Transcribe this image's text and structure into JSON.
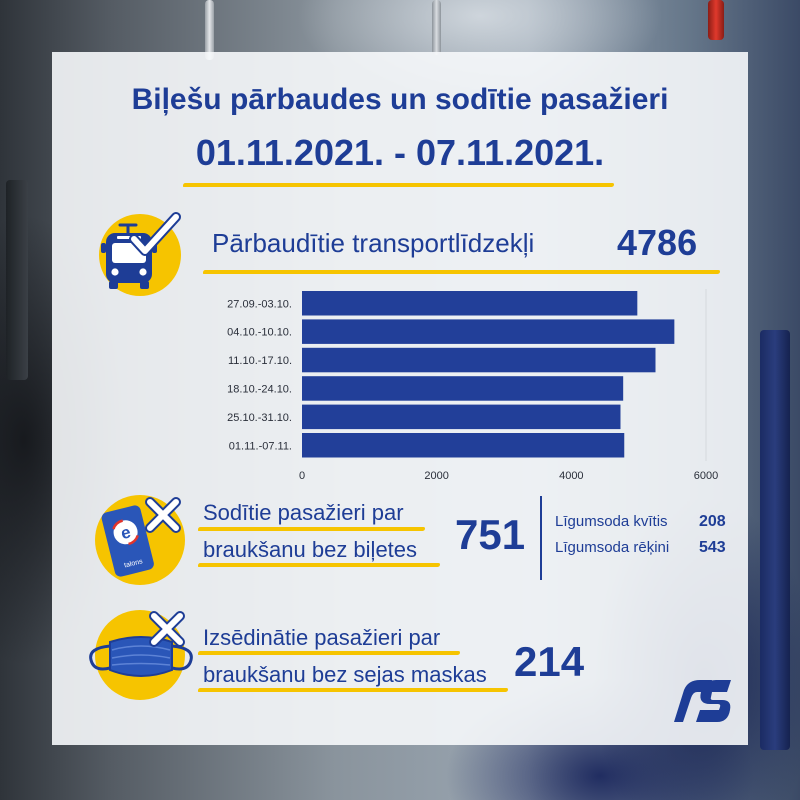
{
  "title": {
    "line1": "Biļešu pārbaudes un sodītie pasažieri",
    "line2": "01.11.2021. - 07.11.2021."
  },
  "vehicles": {
    "label": "Pārbaudītie transportlīdzekļi",
    "value": "4786",
    "icon": "trolleybus-check-icon"
  },
  "chart_data": {
    "type": "bar",
    "orientation": "horizontal",
    "categories": [
      "27.09.-03.10.",
      "04.10.-10.10.",
      "11.10.-17.10.",
      "18.10.-24.10.",
      "25.10.-31.10.",
      "01.11.-07.11."
    ],
    "values": [
      4980,
      5530,
      5250,
      4770,
      4730,
      4786
    ],
    "xlim": [
      0,
      6000
    ],
    "xticks": [
      0,
      2000,
      4000,
      6000
    ],
    "tick_labels": [
      "0",
      "2000",
      "4000",
      "6000"
    ],
    "title": "",
    "xlabel": "",
    "ylabel": "",
    "grid": false
  },
  "fined": {
    "label_line1": "Sodītie pasažieri par",
    "label_line2": "braukšanu bez biļetes",
    "value": "751",
    "breakdown": [
      {
        "label": "Līgumsoda kvītis",
        "value": "208"
      },
      {
        "label": "Līgumsoda rēķini",
        "value": "543"
      }
    ],
    "icon": "e-talons-card-cross-icon",
    "card_text": "talons"
  },
  "mask": {
    "label_line1": "Izsēdinātie pasažieri par",
    "label_line2": "braukšanu bez sejas maskas",
    "value": "214",
    "icon": "face-mask-cross-icon"
  },
  "logo": {
    "icon": "rigas-satiksme-logo"
  },
  "colors": {
    "primary": "#1e3d96",
    "bar": "#223f99",
    "accent": "#f6c400",
    "card": "#2a56b8"
  }
}
